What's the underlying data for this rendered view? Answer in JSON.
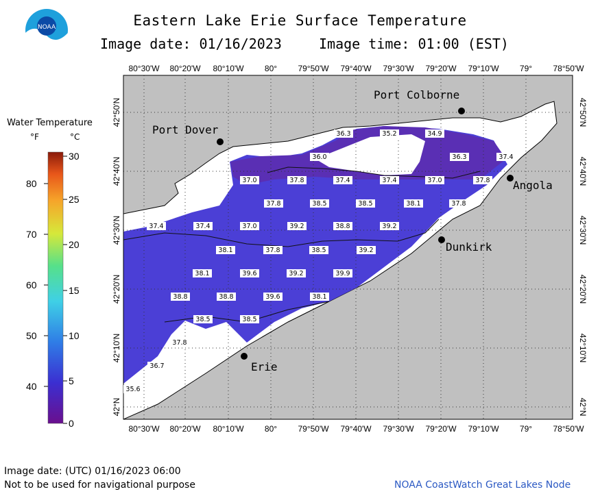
{
  "header": {
    "title": "Eastern Lake Erie Surface Temperature",
    "image_date": "Image date: 01/16/2023",
    "image_time": "Image time: 01:00 (EST)"
  },
  "logo": {
    "icon": "noaa-logo-icon",
    "text": "NOAA"
  },
  "legend": {
    "title": "Water Temperature",
    "unit_f": "°F",
    "unit_c": "°C",
    "f_ticks": [
      "80",
      "70",
      "60",
      "50",
      "40"
    ],
    "c_ticks": [
      "30",
      "25",
      "20",
      "15",
      "10",
      "5",
      "0"
    ]
  },
  "axes": {
    "lon_labels": [
      "80°30'W",
      "80°20'W",
      "80°10'W",
      "80°",
      "79°50'W",
      "79°40'W",
      "79°30'W",
      "79°20'W",
      "79°10'W",
      "79°",
      "78°50'W"
    ],
    "lat_labels": [
      "42°50'N",
      "42°40'N",
      "42°30'N",
      "42°20'N",
      "42°10'N",
      "42°N"
    ]
  },
  "cities": [
    {
      "name": "Port Colborne"
    },
    {
      "name": "Port Dover"
    },
    {
      "name": "Angola"
    },
    {
      "name": "Dunkirk"
    },
    {
      "name": "Erie"
    }
  ],
  "temperature_labels": [
    "36.3",
    "35.2",
    "34.9",
    "36.0",
    "36.3",
    "37.4",
    "37.0",
    "37.8",
    "37.4",
    "37.4",
    "37.0",
    "37.8",
    "37.8",
    "38.5",
    "38.5",
    "38.1",
    "37.8",
    "37.4",
    "37.4",
    "37.0",
    "39.2",
    "38.8",
    "39.2",
    "38.1",
    "37.8",
    "38.5",
    "39.2",
    "38.1",
    "39.6",
    "39.2",
    "39.9",
    "38.8",
    "38.8",
    "39.6",
    "38.1",
    "38.5",
    "38.5",
    "37.8",
    "36.7",
    "35.6"
  ],
  "footer": {
    "left1": "Image date: (UTC) 01/16/2023  06:00",
    "left2": "Not to be used for navigational purpose",
    "right": "NOAA CoastWatch Great Lakes Node"
  },
  "colors": {
    "land": "#c0c0c0",
    "water_cool": "#4a3fd0",
    "water_cold": "#5a2fb0",
    "ice": "#ffffff",
    "footer_text": "#2b59c3"
  }
}
